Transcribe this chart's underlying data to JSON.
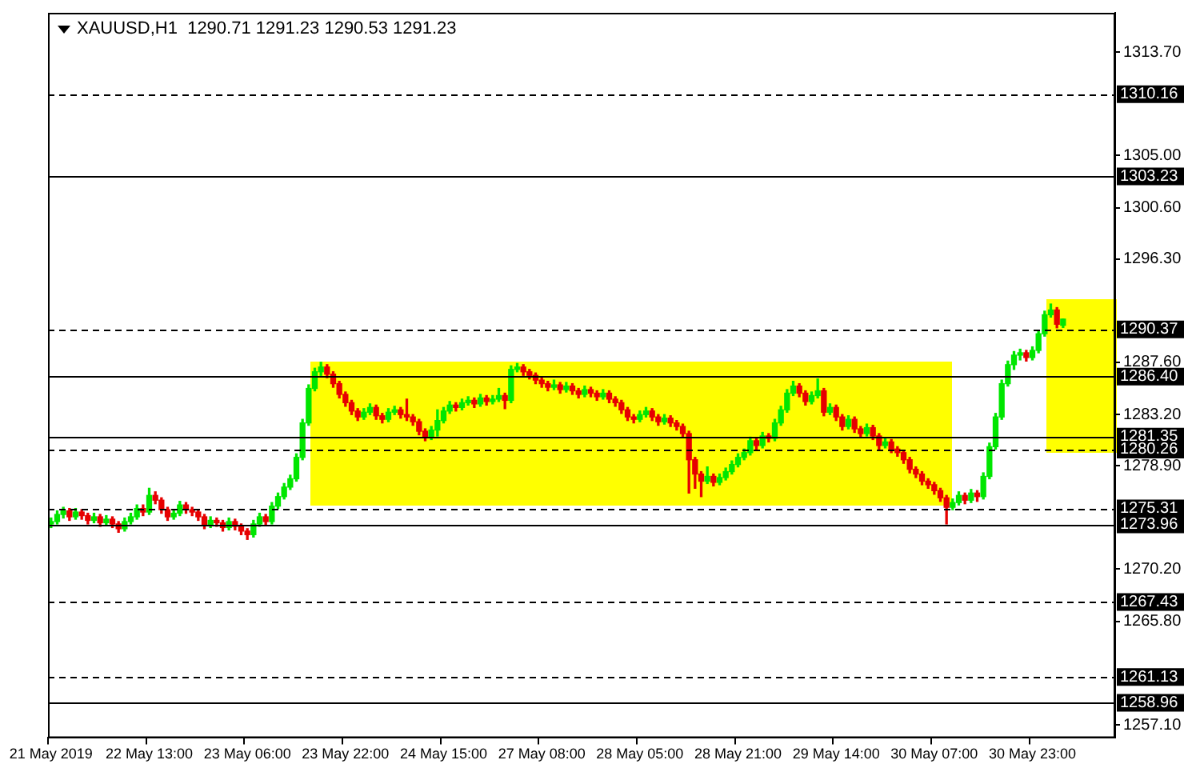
{
  "chart_data": {
    "type": "candlestick",
    "title": "XAUUSD,H1  1290.71 1291.23 1290.53 1291.23",
    "categories": [
      "21 May 2019",
      null,
      null,
      null,
      null,
      null,
      null,
      null,
      null,
      null,
      null,
      null,
      null,
      null,
      null,
      null,
      "22 May 13:00",
      null,
      null,
      null,
      null,
      null,
      null,
      null,
      null,
      null,
      null,
      null,
      null,
      null,
      null,
      null,
      "23 May 06:00",
      null,
      null,
      null,
      null,
      null,
      null,
      null,
      null,
      null,
      null,
      null,
      null,
      null,
      null,
      null,
      "23 May 22:00",
      null,
      null,
      null,
      null,
      null,
      null,
      null,
      null,
      null,
      null,
      null,
      null,
      null,
      null,
      null,
      "24 May 15:00",
      null,
      null,
      null,
      null,
      null,
      null,
      null,
      null,
      null,
      null,
      null,
      null,
      null,
      null,
      null,
      "27 May 08:00",
      null,
      null,
      null,
      null,
      null,
      null,
      null,
      null,
      null,
      null,
      null,
      null,
      null,
      null,
      null,
      "28 May 05:00",
      null,
      null,
      null,
      null,
      null,
      null,
      null,
      null,
      null,
      null,
      null,
      null,
      null,
      null,
      null,
      "28 May 21:00",
      null,
      null,
      null,
      null,
      null,
      null,
      null,
      null,
      null,
      null,
      null,
      null,
      null,
      null,
      null,
      "29 May 14:00",
      null,
      null,
      null,
      null,
      null,
      null,
      null,
      null,
      null,
      null,
      null,
      null,
      null,
      null,
      null,
      "30 May 07:00",
      null,
      null,
      null,
      null,
      null,
      null,
      null,
      null,
      null,
      null,
      null,
      null,
      null,
      null,
      null,
      "30 May 23:00",
      null,
      null,
      null,
      null,
      null,
      null,
      null,
      null,
      null,
      null,
      null,
      null,
      null
    ],
    "ohlc": [
      [
        1274.0,
        1274.5,
        1273.7,
        1274.2
      ],
      [
        1274.2,
        1275.1,
        1274.0,
        1274.8
      ],
      [
        1274.8,
        1275.4,
        1274.5,
        1275.1
      ],
      [
        1275.1,
        1275.3,
        1274.3,
        1274.6
      ],
      [
        1274.6,
        1275.3,
        1274.4,
        1275.0
      ],
      [
        1275.0,
        1275.2,
        1274.4,
        1274.7
      ],
      [
        1274.7,
        1274.9,
        1274.0,
        1274.3
      ],
      [
        1274.3,
        1274.9,
        1274.1,
        1274.6
      ],
      [
        1274.6,
        1274.8,
        1273.8,
        1274.1
      ],
      [
        1274.1,
        1274.7,
        1273.9,
        1274.4
      ],
      [
        1274.4,
        1274.6,
        1273.7,
        1274.0
      ],
      [
        1274.0,
        1274.2,
        1273.3,
        1273.6
      ],
      [
        1273.6,
        1274.5,
        1273.4,
        1274.2
      ],
      [
        1274.2,
        1274.9,
        1274.0,
        1274.6
      ],
      [
        1274.6,
        1275.6,
        1274.4,
        1275.3
      ],
      [
        1275.3,
        1275.6,
        1274.7,
        1275.0
      ],
      [
        1275.0,
        1277.0,
        1274.8,
        1276.4
      ],
      [
        1276.4,
        1276.7,
        1275.7,
        1276.0
      ],
      [
        1276.0,
        1276.2,
        1274.9,
        1275.2
      ],
      [
        1275.2,
        1275.4,
        1274.3,
        1274.6
      ],
      [
        1274.6,
        1275.2,
        1274.4,
        1274.9
      ],
      [
        1274.9,
        1275.9,
        1274.7,
        1275.6
      ],
      [
        1275.6,
        1275.8,
        1274.9,
        1275.2
      ],
      [
        1275.2,
        1275.4,
        1274.7,
        1275.0
      ],
      [
        1275.0,
        1275.2,
        1274.3,
        1274.6
      ],
      [
        1274.6,
        1274.8,
        1273.6,
        1273.9
      ],
      [
        1273.9,
        1274.6,
        1273.7,
        1274.3
      ],
      [
        1274.3,
        1274.5,
        1273.8,
        1274.1
      ],
      [
        1274.1,
        1274.3,
        1273.4,
        1273.7
      ],
      [
        1273.7,
        1274.5,
        1273.5,
        1274.2
      ],
      [
        1274.2,
        1274.4,
        1273.5,
        1273.8
      ],
      [
        1273.8,
        1274.0,
        1273.1,
        1273.4
      ],
      [
        1273.4,
        1273.6,
        1272.7,
        1273.1
      ],
      [
        1273.1,
        1274.3,
        1272.9,
        1274.0
      ],
      [
        1274.0,
        1274.9,
        1273.8,
        1274.6
      ],
      [
        1274.6,
        1274.8,
        1273.9,
        1274.2
      ],
      [
        1274.2,
        1275.8,
        1274.0,
        1275.5
      ],
      [
        1275.5,
        1276.6,
        1275.3,
        1276.3
      ],
      [
        1276.3,
        1277.4,
        1276.1,
        1277.1
      ],
      [
        1277.1,
        1278.1,
        1276.9,
        1277.8
      ],
      [
        1277.8,
        1279.9,
        1277.6,
        1279.6
      ],
      [
        1279.6,
        1282.8,
        1279.4,
        1282.5
      ],
      [
        1282.5,
        1285.7,
        1282.3,
        1285.4
      ],
      [
        1285.4,
        1287.1,
        1285.2,
        1286.8
      ],
      [
        1286.8,
        1287.6,
        1286.5,
        1287.2
      ],
      [
        1287.2,
        1287.4,
        1286.3,
        1286.6
      ],
      [
        1286.6,
        1286.8,
        1285.5,
        1285.8
      ],
      [
        1285.8,
        1286.0,
        1284.6,
        1284.9
      ],
      [
        1284.9,
        1285.1,
        1283.9,
        1284.2
      ],
      [
        1284.2,
        1284.4,
        1283.2,
        1283.5
      ],
      [
        1283.5,
        1283.7,
        1282.7,
        1283.0
      ],
      [
        1283.0,
        1283.7,
        1282.8,
        1283.4
      ],
      [
        1283.4,
        1284.1,
        1283.2,
        1283.8
      ],
      [
        1283.8,
        1284.0,
        1282.8,
        1283.1
      ],
      [
        1283.1,
        1283.3,
        1282.5,
        1282.8
      ],
      [
        1282.8,
        1283.7,
        1282.6,
        1283.4
      ],
      [
        1283.4,
        1283.9,
        1283.2,
        1283.6
      ],
      [
        1283.6,
        1283.8,
        1282.9,
        1283.2
      ],
      [
        1283.2,
        1284.5,
        1282.7,
        1283.0
      ],
      [
        1283.0,
        1283.2,
        1282.3,
        1282.6
      ],
      [
        1282.6,
        1282.8,
        1281.5,
        1281.8
      ],
      [
        1281.8,
        1282.0,
        1281.0,
        1281.3
      ],
      [
        1281.3,
        1282.2,
        1281.1,
        1281.9
      ],
      [
        1281.9,
        1283.6,
        1281.4,
        1282.7
      ],
      [
        1282.7,
        1283.8,
        1282.5,
        1283.5
      ],
      [
        1283.5,
        1284.3,
        1283.3,
        1284.0
      ],
      [
        1284.0,
        1284.2,
        1283.5,
        1283.8
      ],
      [
        1283.8,
        1284.5,
        1283.6,
        1284.2
      ],
      [
        1284.2,
        1284.7,
        1284.0,
        1284.4
      ],
      [
        1284.4,
        1284.6,
        1283.8,
        1284.1
      ],
      [
        1284.1,
        1284.9,
        1283.9,
        1284.6
      ],
      [
        1284.6,
        1284.8,
        1284.0,
        1284.3
      ],
      [
        1284.3,
        1284.8,
        1284.1,
        1284.5
      ],
      [
        1284.5,
        1285.4,
        1284.3,
        1284.8
      ],
      [
        1284.8,
        1285.0,
        1283.7,
        1284.4
      ],
      [
        1284.4,
        1287.3,
        1284.2,
        1287.0
      ],
      [
        1287.0,
        1287.5,
        1286.8,
        1287.2
      ],
      [
        1287.2,
        1287.4,
        1286.5,
        1286.8
      ],
      [
        1286.8,
        1287.0,
        1286.2,
        1286.5
      ],
      [
        1286.5,
        1286.7,
        1285.8,
        1286.1
      ],
      [
        1286.1,
        1286.3,
        1285.5,
        1285.8
      ],
      [
        1285.8,
        1286.0,
        1285.2,
        1285.5
      ],
      [
        1285.5,
        1286.1,
        1285.3,
        1285.7
      ],
      [
        1285.7,
        1285.9,
        1285.0,
        1285.3
      ],
      [
        1285.3,
        1285.9,
        1285.1,
        1285.6
      ],
      [
        1285.6,
        1285.8,
        1284.9,
        1285.2
      ],
      [
        1285.2,
        1285.4,
        1284.6,
        1284.9
      ],
      [
        1284.9,
        1285.6,
        1284.7,
        1285.3
      ],
      [
        1285.3,
        1285.5,
        1284.7,
        1285.0
      ],
      [
        1285.0,
        1285.2,
        1284.4,
        1284.7
      ],
      [
        1284.7,
        1285.3,
        1284.5,
        1285.0
      ],
      [
        1285.0,
        1285.2,
        1284.2,
        1284.5
      ],
      [
        1284.5,
        1284.7,
        1283.9,
        1284.2
      ],
      [
        1284.2,
        1284.4,
        1283.3,
        1283.6
      ],
      [
        1283.6,
        1283.8,
        1282.7,
        1283.0
      ],
      [
        1283.0,
        1283.2,
        1282.5,
        1282.8
      ],
      [
        1282.8,
        1283.5,
        1282.6,
        1283.2
      ],
      [
        1283.2,
        1283.8,
        1283.0,
        1283.5
      ],
      [
        1283.5,
        1283.7,
        1282.7,
        1283.0
      ],
      [
        1283.0,
        1283.2,
        1282.3,
        1282.6
      ],
      [
        1282.6,
        1283.2,
        1282.4,
        1282.9
      ],
      [
        1282.9,
        1283.1,
        1282.2,
        1282.5
      ],
      [
        1282.5,
        1282.7,
        1281.9,
        1282.2
      ],
      [
        1282.2,
        1282.4,
        1281.3,
        1281.6
      ],
      [
        1281.6,
        1281.8,
        1276.6,
        1279.4
      ],
      [
        1279.4,
        1279.6,
        1277.0,
        1278.2
      ],
      [
        1278.2,
        1278.4,
        1276.3,
        1277.6
      ],
      [
        1277.6,
        1278.8,
        1277.4,
        1278.0
      ],
      [
        1278.0,
        1278.2,
        1277.2,
        1277.5
      ],
      [
        1277.5,
        1278.2,
        1277.3,
        1277.9
      ],
      [
        1277.9,
        1278.7,
        1277.7,
        1278.4
      ],
      [
        1278.4,
        1279.3,
        1278.2,
        1279.0
      ],
      [
        1279.0,
        1279.9,
        1278.8,
        1279.6
      ],
      [
        1279.6,
        1280.3,
        1279.4,
        1280.0
      ],
      [
        1280.0,
        1281.3,
        1279.8,
        1281.0
      ],
      [
        1281.0,
        1281.2,
        1280.3,
        1280.6
      ],
      [
        1280.6,
        1281.7,
        1280.4,
        1281.4
      ],
      [
        1281.4,
        1281.6,
        1280.9,
        1281.2
      ],
      [
        1281.2,
        1282.8,
        1281.0,
        1282.5
      ],
      [
        1282.5,
        1283.9,
        1282.3,
        1283.6
      ],
      [
        1283.6,
        1285.3,
        1283.4,
        1285.0
      ],
      [
        1285.0,
        1286.0,
        1284.8,
        1285.6
      ],
      [
        1285.6,
        1285.8,
        1284.7,
        1285.0
      ],
      [
        1285.0,
        1285.2,
        1284.0,
        1284.3
      ],
      [
        1284.3,
        1285.1,
        1284.1,
        1284.8
      ],
      [
        1284.8,
        1286.2,
        1284.6,
        1285.2
      ],
      [
        1285.2,
        1285.4,
        1283.1,
        1283.4
      ],
      [
        1283.4,
        1284.1,
        1283.2,
        1283.8
      ],
      [
        1283.8,
        1284.0,
        1282.7,
        1283.0
      ],
      [
        1283.0,
        1283.2,
        1281.9,
        1282.2
      ],
      [
        1282.2,
        1283.1,
        1282.0,
        1282.8
      ],
      [
        1282.8,
        1283.0,
        1281.7,
        1282.0
      ],
      [
        1282.0,
        1282.2,
        1281.3,
        1281.6
      ],
      [
        1281.6,
        1282.4,
        1281.4,
        1282.1
      ],
      [
        1282.1,
        1282.3,
        1281.1,
        1281.4
      ],
      [
        1281.4,
        1281.6,
        1280.3,
        1280.6
      ],
      [
        1280.6,
        1281.2,
        1280.4,
        1280.9
      ],
      [
        1280.9,
        1281.1,
        1280.0,
        1280.3
      ],
      [
        1280.3,
        1280.5,
        1279.7,
        1280.0
      ],
      [
        1280.0,
        1280.2,
        1279.1,
        1279.4
      ],
      [
        1279.4,
        1279.6,
        1278.3,
        1278.6
      ],
      [
        1278.6,
        1278.8,
        1277.9,
        1278.2
      ],
      [
        1278.2,
        1278.4,
        1277.3,
        1277.6
      ],
      [
        1277.6,
        1277.8,
        1277.0,
        1277.3
      ],
      [
        1277.3,
        1277.5,
        1276.5,
        1276.8
      ],
      [
        1276.8,
        1277.0,
        1275.9,
        1276.2
      ],
      [
        1276.2,
        1276.4,
        1274.0,
        1275.4
      ],
      [
        1275.4,
        1276.1,
        1275.2,
        1275.8
      ],
      [
        1275.8,
        1276.7,
        1275.6,
        1276.4
      ],
      [
        1276.4,
        1276.6,
        1275.7,
        1276.0
      ],
      [
        1276.0,
        1276.9,
        1275.8,
        1276.6
      ],
      [
        1276.6,
        1276.8,
        1275.9,
        1276.3
      ],
      [
        1276.3,
        1278.3,
        1276.1,
        1278.0
      ],
      [
        1278.0,
        1280.8,
        1277.8,
        1280.5
      ],
      [
        1280.5,
        1283.3,
        1280.3,
        1283.0
      ],
      [
        1283.0,
        1286.1,
        1282.8,
        1285.8
      ],
      [
        1285.8,
        1287.7,
        1285.6,
        1287.4
      ],
      [
        1287.4,
        1288.5,
        1287.0,
        1288.2
      ],
      [
        1288.2,
        1288.7,
        1287.8,
        1288.4
      ],
      [
        1288.4,
        1288.6,
        1287.7,
        1288.0
      ],
      [
        1288.0,
        1288.9,
        1287.8,
        1288.6
      ],
      [
        1288.6,
        1290.3,
        1288.4,
        1290.0
      ],
      [
        1290.0,
        1291.9,
        1289.8,
        1291.6
      ],
      [
        1291.6,
        1292.5,
        1291.4,
        1292.0
      ],
      [
        1292.0,
        1292.2,
        1290.5,
        1290.8
      ],
      [
        1290.71,
        1291.23,
        1290.53,
        1291.23
      ],
      null,
      null,
      null,
      null,
      null,
      null,
      null,
      null
    ],
    "ylim": [
      1256.0,
      1317.0
    ],
    "yticks": [
      {
        "value": 1257.1,
        "label": "1257.10"
      },
      {
        "value": 1265.8,
        "label": "1265.80"
      },
      {
        "value": 1270.2,
        "label": "1270.20"
      },
      {
        "value": 1278.9,
        "label": "1278.90"
      },
      {
        "value": 1283.2,
        "label": "1283.20"
      },
      {
        "value": 1287.6,
        "label": "1287.60"
      },
      {
        "value": 1296.3,
        "label": "1296.30"
      },
      {
        "value": 1300.6,
        "label": "1300.60"
      },
      {
        "value": 1305.0,
        "label": "1305.00"
      },
      {
        "value": 1313.7,
        "label": "1313.70"
      }
    ],
    "ref_lines": [
      {
        "axis": "y",
        "value": 1310.16,
        "label": "1310.16",
        "line_style": "dashed"
      },
      {
        "axis": "y",
        "value": 1303.23,
        "label": "1303.23",
        "line_style": "solid"
      },
      {
        "axis": "y",
        "value": 1290.37,
        "label": "1290.37",
        "line_style": "dashed"
      },
      {
        "axis": "y",
        "value": 1286.4,
        "label": "1286.40",
        "line_style": "solid"
      },
      {
        "axis": "y",
        "value": 1281.35,
        "label": "1281.35",
        "line_style": "solid"
      },
      {
        "axis": "y",
        "value": 1280.26,
        "label": "1280.26",
        "line_style": "dashed"
      },
      {
        "axis": "y",
        "value": 1275.31,
        "label": "1275.31",
        "line_style": "dashed"
      },
      {
        "axis": "y",
        "value": 1273.96,
        "label": "1273.96",
        "line_style": "solid"
      },
      {
        "axis": "y",
        "value": 1267.43,
        "label": "1267.43",
        "line_style": "dashed"
      },
      {
        "axis": "y",
        "value": 1261.13,
        "label": "1261.13",
        "line_style": "dashed"
      },
      {
        "axis": "y",
        "value": 1258.96,
        "label": "1258.96",
        "line_style": "solid"
      }
    ],
    "grid": false,
    "legend": false
  }
}
